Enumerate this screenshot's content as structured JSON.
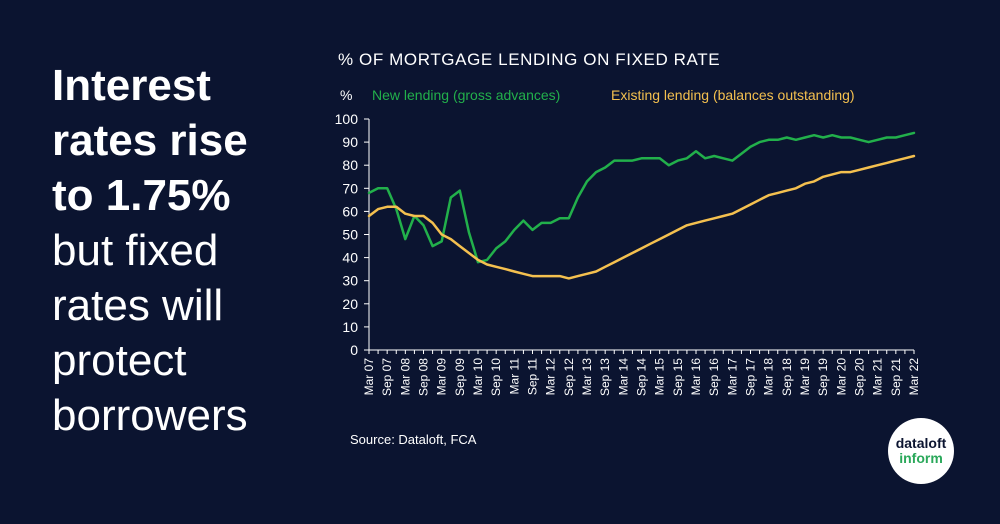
{
  "headline": {
    "bold_lines": [
      "Interest",
      "rates rise",
      "to 1.75%"
    ],
    "light_lines": [
      "but fixed",
      "rates will",
      "protect",
      "borrowers"
    ]
  },
  "source": "Source: Dataloft, FCA",
  "logo": {
    "line1": "dataloft",
    "line2": "inform"
  },
  "chart_data": {
    "type": "line",
    "title": "% OF MORTGAGE LENDING ON FIXED RATE",
    "ylabel": "%",
    "xlabel": "",
    "ylim": [
      0,
      100
    ],
    "yticks": [
      0,
      10,
      20,
      30,
      40,
      50,
      60,
      70,
      80,
      90,
      100
    ],
    "grid": false,
    "legend_position": "top",
    "x_tick_labels": [
      "Mar 07",
      "Sep 07",
      "Mar 08",
      "Sep 08",
      "Mar 09",
      "Sep 09",
      "Mar 10",
      "Sep 10",
      "Mar 11",
      "Sep 11",
      "Mar 12",
      "Sep 12",
      "Mar 13",
      "Sep 13",
      "Mar 14",
      "Sep 14",
      "Mar 15",
      "Sep 15",
      "Mar 16",
      "Sep 16",
      "Mar 17",
      "Sep 17",
      "Mar 18",
      "Sep 18",
      "Mar 19",
      "Sep 19",
      "Mar 20",
      "Sep 20",
      "Mar 21",
      "Sep 21",
      "Mar 22"
    ],
    "x": [
      "Mar 07",
      "Jun 07",
      "Sep 07",
      "Dec 07",
      "Mar 08",
      "Jun 08",
      "Sep 08",
      "Dec 08",
      "Mar 09",
      "Jun 09",
      "Sep 09",
      "Dec 09",
      "Mar 10",
      "Jun 10",
      "Sep 10",
      "Dec 10",
      "Mar 11",
      "Jun 11",
      "Sep 11",
      "Dec 11",
      "Mar 12",
      "Jun 12",
      "Sep 12",
      "Dec 12",
      "Mar 13",
      "Jun 13",
      "Sep 13",
      "Dec 13",
      "Mar 14",
      "Jun 14",
      "Sep 14",
      "Dec 14",
      "Mar 15",
      "Jun 15",
      "Sep 15",
      "Dec 15",
      "Mar 16",
      "Jun 16",
      "Sep 16",
      "Dec 16",
      "Mar 17",
      "Jun 17",
      "Sep 17",
      "Dec 17",
      "Mar 18",
      "Jun 18",
      "Sep 18",
      "Dec 18",
      "Mar 19",
      "Jun 19",
      "Sep 19",
      "Dec 19",
      "Mar 20",
      "Jun 20",
      "Sep 20",
      "Dec 20",
      "Mar 21",
      "Jun 21",
      "Sep 21",
      "Dec 21",
      "Mar 22"
    ],
    "series": [
      {
        "name": "New lending (gross advances)",
        "color": "#22b04b",
        "values": [
          68,
          70,
          70,
          61,
          48,
          58,
          54,
          45,
          47,
          66,
          69,
          51,
          38,
          39,
          44,
          47,
          52,
          56,
          52,
          55,
          55,
          57,
          57,
          66,
          73,
          77,
          79,
          82,
          82,
          82,
          83,
          83,
          83,
          80,
          82,
          83,
          86,
          83,
          84,
          83,
          82,
          85,
          88,
          90,
          91,
          91,
          92,
          91,
          92,
          93,
          92,
          93,
          92,
          92,
          91,
          90,
          91,
          92,
          92,
          93,
          94
        ]
      },
      {
        "name": "Existing lending (balances outstanding)",
        "color": "#f4c04f",
        "values": [
          58,
          61,
          62,
          62,
          59,
          58,
          58,
          55,
          50,
          48,
          45,
          42,
          39,
          37,
          36,
          35,
          34,
          33,
          32,
          32,
          32,
          32,
          31,
          32,
          33,
          34,
          36,
          38,
          40,
          42,
          44,
          46,
          48,
          50,
          52,
          54,
          55,
          56,
          57,
          58,
          59,
          61,
          63,
          65,
          67,
          68,
          69,
          70,
          72,
          73,
          75,
          76,
          77,
          77,
          78,
          79,
          80,
          81,
          82,
          83,
          84
        ]
      }
    ]
  },
  "colors": {
    "background": "#0b1430",
    "new_lending": "#22b04b",
    "existing_lending": "#f4c04f",
    "text": "#ffffff"
  }
}
